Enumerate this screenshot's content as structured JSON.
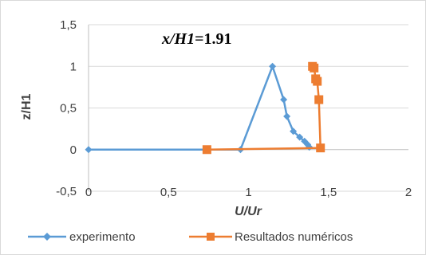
{
  "chart_data": {
    "type": "line",
    "xlabel": "U/Ur",
    "ylabel": "z/H1",
    "annotation": {
      "italic_part": "x/H1",
      "bold_part": "=1.91"
    },
    "xlim": [
      0,
      2
    ],
    "ylim": [
      -0.5,
      1.5
    ],
    "x_ticks": [
      0,
      0.5,
      1,
      1.5,
      2
    ],
    "x_tick_labels": [
      "0",
      "0,5",
      "1",
      "1,5",
      "2"
    ],
    "y_ticks": [
      -0.5,
      0,
      0.5,
      1,
      1.5
    ],
    "y_tick_labels": [
      "-0,5",
      "0",
      "0,5",
      "1",
      "1,5"
    ],
    "grid": "horizontal",
    "legend_position": "bottom",
    "series": [
      {
        "name": "experimento",
        "color": "#5b9bd5",
        "marker": "diamond",
        "x": [
          0,
          0.95,
          1.15,
          1.22,
          1.24,
          1.28,
          1.32,
          1.35,
          1.37,
          1.38
        ],
        "y": [
          0,
          0,
          1.0,
          0.6,
          0.4,
          0.22,
          0.15,
          0.1,
          0.06,
          0.03
        ]
      },
      {
        "name": "Resultados numéricos",
        "color": "#ed7d31",
        "marker": "square",
        "x": [
          0.74,
          1.45,
          1.44,
          1.43,
          1.42,
          1.41,
          1.4
        ],
        "y": [
          0,
          0.02,
          0.6,
          0.82,
          0.85,
          0.98,
          1.0
        ]
      }
    ]
  }
}
